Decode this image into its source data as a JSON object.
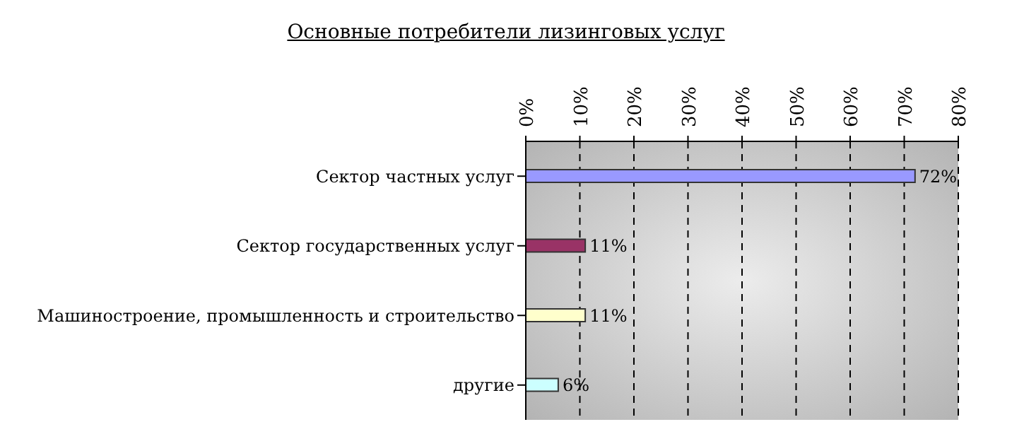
{
  "chart_data": {
    "type": "bar",
    "orientation": "horizontal",
    "title": "Основные потребители лизинговых услуг",
    "categories": [
      "Сектор частных услуг",
      "Сектор государственных услуг",
      "Машиностроение, промышленность и строительство",
      "другие"
    ],
    "values": [
      72,
      11,
      11,
      6
    ],
    "colors": [
      "#9999ff",
      "#993366",
      "#ffffcc",
      "#ccffff"
    ],
    "value_labels": [
      "72%",
      "11%",
      "11%",
      "6%"
    ],
    "xlim": [
      0,
      80
    ],
    "xticks": [
      {
        "value": 0,
        "label": "0%"
      },
      {
        "value": 10,
        "label": "10%"
      },
      {
        "value": 20,
        "label": "20%"
      },
      {
        "value": 30,
        "label": "30%"
      },
      {
        "value": 40,
        "label": "40%"
      },
      {
        "value": 50,
        "label": "50%"
      },
      {
        "value": 60,
        "label": "60%"
      },
      {
        "value": 70,
        "label": "70%"
      },
      {
        "value": 80,
        "label": "80%"
      }
    ],
    "grid": "x"
  }
}
